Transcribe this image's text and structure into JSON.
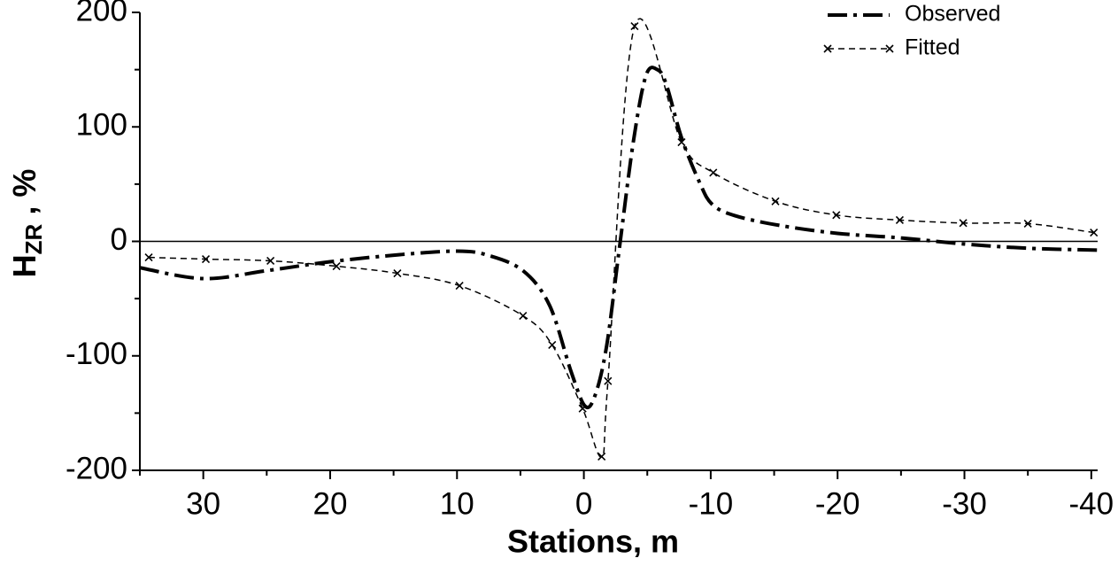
{
  "chart_data": {
    "type": "line",
    "x_label": "Stations, m",
    "y_label": "H",
    "y_label_subscript": "ZR",
    "y_label_suffix": " , %",
    "xlim": [
      35,
      -40.5
    ],
    "ylim": [
      -200,
      200
    ],
    "xticks": [
      30,
      20,
      10,
      0,
      -10,
      -20,
      -30,
      -40
    ],
    "x_minor_ticks": [
      35,
      25,
      15,
      5,
      -5,
      -15,
      -25,
      -35
    ],
    "yticks": [
      200,
      100,
      0,
      -100,
      -200
    ],
    "y_minor_ticks": [
      150,
      50,
      -50,
      -150
    ],
    "zero_line": 0,
    "legend": "upper right",
    "series": [
      {
        "name": "Observed",
        "color": "#000000",
        "style": "dash-dot",
        "x": [
          35,
          30,
          25,
          20,
          14.5,
          10,
          7.6,
          4.8,
          2.7,
          1,
          -0.1,
          -0.9,
          -1.8,
          -2.8,
          -3.9,
          -4.9,
          -5.8,
          -6.5,
          -7.7,
          -9.1,
          -10.1,
          -11.9,
          -15.4,
          -20,
          -25,
          -30,
          -35,
          -40.6
        ],
        "values": [
          -23,
          -32.5,
          -25.6,
          -17.8,
          -11.6,
          -8.5,
          -12,
          -25.6,
          -56,
          -114,
          -144,
          -134,
          -91,
          -6,
          87,
          145,
          150,
          137,
          90.5,
          52,
          32.5,
          22.5,
          14,
          7,
          3,
          -2.3,
          -6,
          -7.7
        ]
      },
      {
        "name": "Fitted",
        "color": "#000000",
        "style": "dashed",
        "marker": "x",
        "x": [
          34.3,
          29.8,
          24.7,
          19.5,
          14.7,
          9.8,
          4.8,
          2.5,
          0.1,
          -1.4,
          -1.9,
          -4.0,
          -7.7,
          -10.2,
          -15.1,
          -19.9,
          -24.9,
          -29.9,
          -35.0,
          -40.2
        ],
        "values": [
          -14,
          -15.5,
          -17,
          -21.7,
          -27.9,
          -38.7,
          -65,
          -90.5,
          -146,
          -188,
          -122,
          188,
          86.6,
          60,
          35,
          23,
          18.6,
          16,
          15.5,
          7.7
        ]
      }
    ]
  }
}
